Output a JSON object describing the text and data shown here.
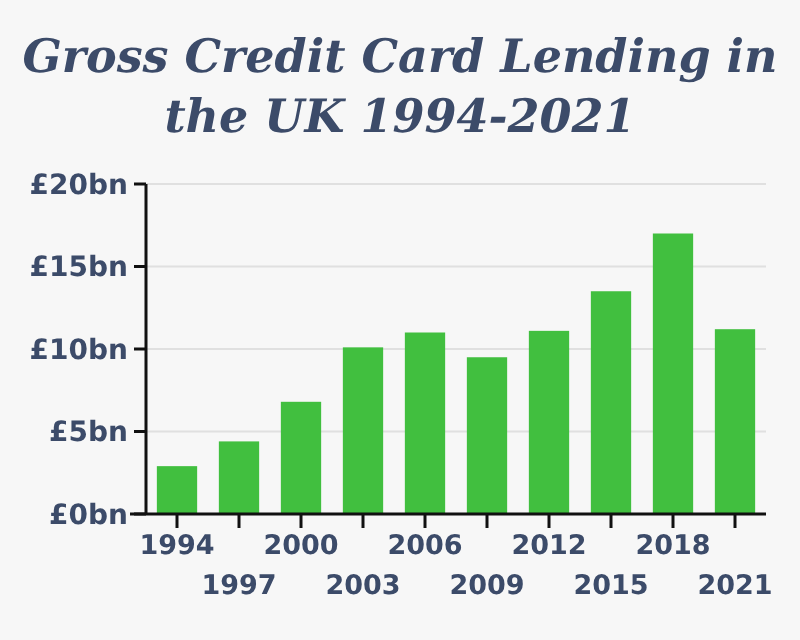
{
  "chart_data": {
    "type": "bar",
    "title": "Gross Credit Card Lending in the UK 1994-2021",
    "categories": [
      "1994",
      "1997",
      "2000",
      "2003",
      "2006",
      "2009",
      "2012",
      "2015",
      "2018",
      "2021"
    ],
    "values": [
      2.9,
      4.4,
      6.8,
      10.1,
      11.0,
      9.5,
      11.1,
      13.5,
      17.0,
      11.2
    ],
    "color": "#41bf3f",
    "ylim": [
      0,
      20
    ],
    "yticks": [
      {
        "value": 0,
        "label": "£0bn"
      },
      {
        "value": 5,
        "label": "£5bn"
      },
      {
        "value": 10,
        "label": "£10bn"
      },
      {
        "value": 15,
        "label": "£15bn"
      },
      {
        "value": 20,
        "label": "£20bn"
      }
    ],
    "grid": "y"
  }
}
